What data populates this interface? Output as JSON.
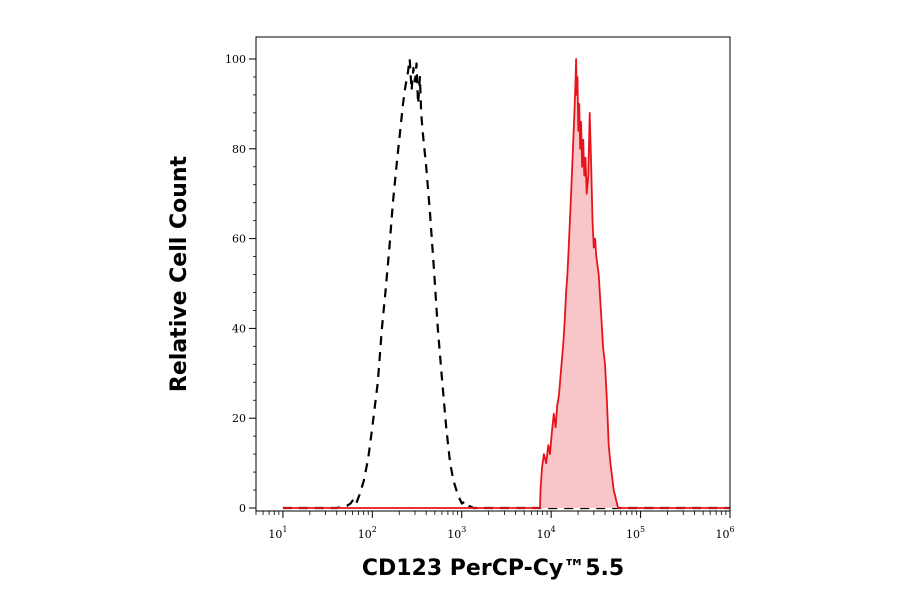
{
  "chart_data": {
    "type": "area",
    "xlabel": "CD123 PerCP-Cy™5.5",
    "ylabel": "Relative Cell Count",
    "x_scale": "log",
    "xlim": [
      5,
      1000000
    ],
    "ylim": [
      0,
      100
    ],
    "grid": false,
    "legend": "none",
    "x_ticks": [
      {
        "base": "10",
        "exp": "1",
        "value": 10
      },
      {
        "base": "10",
        "exp": "2",
        "value": 100
      },
      {
        "base": "10",
        "exp": "3",
        "value": 1000
      },
      {
        "base": "10",
        "exp": "4",
        "value": 10000
      },
      {
        "base": "10",
        "exp": "5",
        "value": 100000
      },
      {
        "base": "10",
        "exp": "6",
        "value": 1000000
      }
    ],
    "y_ticks": [
      {
        "label": "0",
        "value": 0
      },
      {
        "label": "20",
        "value": 20
      },
      {
        "label": "40",
        "value": 40
      },
      {
        "label": "60",
        "value": 60
      },
      {
        "label": "80",
        "value": 80
      },
      {
        "label": "100",
        "value": 100
      }
    ],
    "series": [
      {
        "style": "dashed",
        "color": "#000000",
        "fill": "none",
        "points": [
          [
            10,
            0
          ],
          [
            40,
            0
          ],
          [
            52,
            0.5
          ],
          [
            57,
            1
          ],
          [
            62,
            2
          ],
          [
            66,
            1
          ],
          [
            72,
            3
          ],
          [
            80,
            6
          ],
          [
            90,
            11
          ],
          [
            100,
            18
          ],
          [
            115,
            28
          ],
          [
            128,
            40
          ],
          [
            140,
            48
          ],
          [
            155,
            58
          ],
          [
            170,
            68
          ],
          [
            190,
            78
          ],
          [
            205,
            84
          ],
          [
            220,
            90
          ],
          [
            235,
            94
          ],
          [
            250,
            97
          ],
          [
            262,
            100
          ],
          [
            275,
            93
          ],
          [
            288,
            98
          ],
          [
            300,
            95
          ],
          [
            312,
            99
          ],
          [
            325,
            90
          ],
          [
            340,
            96
          ],
          [
            352,
            88
          ],
          [
            365,
            84
          ],
          [
            400,
            76
          ],
          [
            440,
            66
          ],
          [
            490,
            53
          ],
          [
            540,
            40
          ],
          [
            600,
            29
          ],
          [
            670,
            18
          ],
          [
            740,
            10
          ],
          [
            810,
            6
          ],
          [
            900,
            3
          ],
          [
            1000,
            1
          ],
          [
            1100,
            1.5
          ],
          [
            1200,
            0.5
          ],
          [
            1350,
            0
          ],
          [
            100000,
            0
          ],
          [
            1000000,
            0
          ]
        ]
      },
      {
        "style": "solid",
        "color": "#e8141c",
        "fill": "#f8c5c8",
        "points": [
          [
            10,
            0
          ],
          [
            7500,
            0
          ],
          [
            7600,
            4
          ],
          [
            7900,
            9
          ],
          [
            8300,
            12
          ],
          [
            8800,
            10
          ],
          [
            9300,
            14
          ],
          [
            9700,
            12
          ],
          [
            10200,
            17
          ],
          [
            10700,
            21
          ],
          [
            11200,
            18
          ],
          [
            11700,
            23
          ],
          [
            12200,
            25
          ],
          [
            12700,
            29
          ],
          [
            13200,
            33
          ],
          [
            13700,
            37
          ],
          [
            14200,
            42
          ],
          [
            14700,
            48
          ],
          [
            15200,
            52
          ],
          [
            15700,
            58
          ],
          [
            16200,
            64
          ],
          [
            16700,
            70
          ],
          [
            17200,
            76
          ],
          [
            17700,
            82
          ],
          [
            18200,
            88
          ],
          [
            18700,
            95
          ],
          [
            19000,
            100
          ],
          [
            19300,
            92
          ],
          [
            19700,
            96
          ],
          [
            20100,
            84
          ],
          [
            20600,
            90
          ],
          [
            21100,
            80
          ],
          [
            21600,
            86
          ],
          [
            22200,
            76
          ],
          [
            22800,
            82
          ],
          [
            23500,
            74
          ],
          [
            24200,
            78
          ],
          [
            25000,
            70
          ],
          [
            26000,
            74
          ],
          [
            27000,
            88
          ],
          [
            28000,
            76
          ],
          [
            29000,
            64
          ],
          [
            30000,
            58
          ],
          [
            31000,
            60
          ],
          [
            32000,
            56
          ],
          [
            33000,
            54
          ],
          [
            34000,
            52
          ],
          [
            35000,
            48
          ],
          [
            36000,
            44
          ],
          [
            37000,
            40
          ],
          [
            38000,
            36
          ],
          [
            40000,
            32
          ],
          [
            42000,
            24
          ],
          [
            44000,
            14
          ],
          [
            46000,
            10
          ],
          [
            48000,
            7
          ],
          [
            50000,
            4
          ],
          [
            53000,
            2
          ],
          [
            56000,
            0
          ],
          [
            1000000,
            0
          ]
        ]
      }
    ]
  }
}
